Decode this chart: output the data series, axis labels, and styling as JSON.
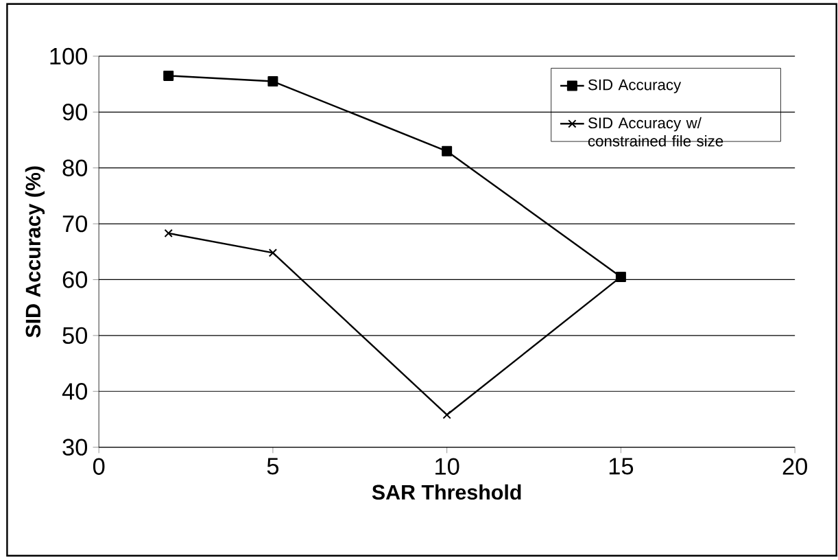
{
  "chart_data": {
    "type": "line",
    "xlabel": "SAR Threshold",
    "ylabel": "SID Accuracy (%)",
    "xlim": [
      0,
      20
    ],
    "xticks": [
      0,
      5,
      10,
      15,
      20
    ],
    "ylim": [
      30,
      100
    ],
    "yticks": [
      30,
      40,
      50,
      60,
      70,
      80,
      90,
      100
    ],
    "grid": "y",
    "legend": "top right",
    "line_style": "solid",
    "series": [
      {
        "name": "SID Accuracy",
        "color": "#000000",
        "marker": "square",
        "x": [
          2,
          5,
          10,
          15
        ],
        "values": [
          96.5,
          95.5,
          83,
          60.5
        ]
      },
      {
        "name": "SID Accuracy w/ constrained file size",
        "color": "#000000",
        "marker": "cross",
        "x": [
          2,
          5,
          10,
          15
        ],
        "values": [
          68.3,
          64.8,
          35.8,
          60.5
        ]
      }
    ]
  }
}
